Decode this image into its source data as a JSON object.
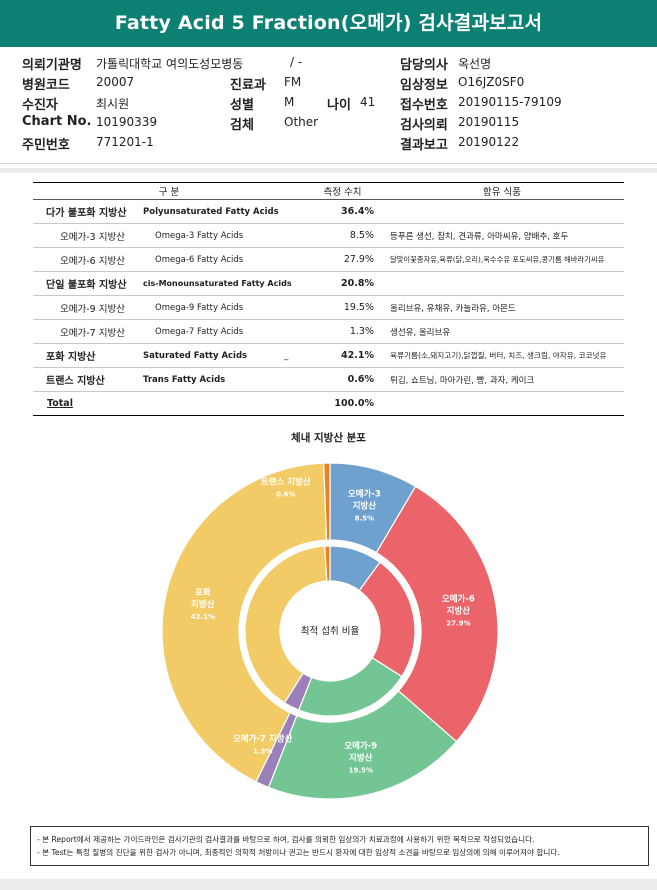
{
  "report": {
    "title": "Fatty Acid 5 Fraction(오메가) 검사결과보고서"
  },
  "patient_info": {
    "institution": {
      "label": "의뢰기관명",
      "value": "가톨릭대학교 여의도성모병동",
      "extra": "/ -"
    },
    "hospital_code": {
      "label": "병원코드",
      "value": "20007"
    },
    "recipient": {
      "label": "수진자",
      "value": "최시원"
    },
    "chart_no": {
      "label": "Chart No.",
      "value": "10190339"
    },
    "resident_no": {
      "label": "주민번호",
      "value": "771201-1"
    },
    "department": {
      "label": "진료과",
      "value": "FM"
    },
    "sex": {
      "label": "성별",
      "value": "M"
    },
    "age": {
      "label": "나이",
      "value": "41"
    },
    "specimen": {
      "label": "검체",
      "value": "Other"
    },
    "doctor": {
      "label": "담당의사",
      "value": "옥선명"
    },
    "clinical_info": {
      "label": "임상정보",
      "value": "O16JZ0SF0"
    },
    "receipt_no": {
      "label": "접수번호",
      "value": "20190115-79109"
    },
    "request_date": {
      "label": "검사의뢰",
      "value": "20190115"
    },
    "report_date": {
      "label": "결과보고",
      "value": "20190122"
    }
  },
  "table": {
    "headers": {
      "category": "구 분",
      "value": "측정 수치",
      "foods": "함유 식품"
    },
    "rows": [
      {
        "kr": "다가 불포화 지방산",
        "en": "Polyunsaturated Fatty Acids",
        "value": "36.4%",
        "foods": "",
        "level": "main"
      },
      {
        "kr": "오메가-3 지방산",
        "en": "Omega-3 Fatty Acids",
        "value": "8.5%",
        "foods": "등푸른 생선, 참치, 견과류, 아마씨유, 양배추, 호두",
        "level": "sub"
      },
      {
        "kr": "오메가-6 지방산",
        "en": "Omega-6 Fatty Acids",
        "value": "27.9%",
        "foods": "달맞이꽃종자유,육류(닭,오리),옥수수유 포도씨유,콩기름 해바라기씨유",
        "level": "sub"
      },
      {
        "kr": "단일 불포화 지방산",
        "en": "cis-Monounsaturated Fatty Acids",
        "value": "20.8%",
        "foods": "",
        "level": "main"
      },
      {
        "kr": "오메가-9 지방산",
        "en": "Omega-9 Fatty Acids",
        "value": "19.5%",
        "foods": "올리브유, 유채유, 카놀라유, 아몬드",
        "level": "sub"
      },
      {
        "kr": "오메가-7 지방산",
        "en": "Omega-7 Fatty Acids",
        "value": "1.3%",
        "foods": "생선유, 올리브유",
        "level": "sub"
      },
      {
        "kr": "포화 지방산",
        "en": "Saturated Fatty Acids",
        "value": "42.1%",
        "foods": "육류기름(소,돼지고기),닭껍질, 버터, 치즈, 생크림, 야자유, 코코넛유",
        "level": "main",
        "mark": "_"
      },
      {
        "kr": "트랜스 지방산",
        "en": "Trans Fatty Acids",
        "value": "0.6%",
        "foods": "튀김, 쇼트닝, 마아가린, 빵, 과자, 케이크",
        "level": "main"
      }
    ],
    "total": {
      "label": "Total",
      "value": "100.0%"
    }
  },
  "chart_data": {
    "type": "pie",
    "title": "체내 지방산 분포",
    "center_label": "최적 섭취 비율",
    "outer_ring": {
      "description": "measured",
      "slices": [
        {
          "label": "오메가-3 지방산",
          "value": 8.5,
          "display": "8.5%",
          "color": "#6fa1cf"
        },
        {
          "label": "오메가-6 지방산",
          "value": 27.9,
          "display": "27.9%",
          "color": "#ea6469"
        },
        {
          "label": "오메가-9 지방산",
          "value": 19.5,
          "display": "19.5%",
          "color": "#73c694"
        },
        {
          "label": "오메가-7 지방산",
          "value": 1.3,
          "display": "1.3%",
          "color": "#9b7fb8"
        },
        {
          "label": "포화 지방산",
          "value": 42.1,
          "display": "42.1%",
          "color": "#f2cb67"
        },
        {
          "label": "트랜스 지방산",
          "value": 0.6,
          "display": "0.6%",
          "color": "#ea8226"
        }
      ]
    },
    "inner_ring": {
      "description": "optimal",
      "slices": [
        {
          "label": "오메가-3 지방산",
          "value": 10,
          "color": "#6fa1cf"
        },
        {
          "label": "오메가-6 지방산",
          "value": 24,
          "color": "#ea6469"
        },
        {
          "label": "오메가-9 지방산",
          "value": 22,
          "color": "#73c694"
        },
        {
          "label": "오메가-7 지방산",
          "value": 3,
          "color": "#9b7fb8"
        },
        {
          "label": "포화 지방산",
          "value": 40,
          "color": "#f2cb67"
        },
        {
          "label": "트랜스 지방산",
          "value": 1,
          "color": "#ea8226"
        }
      ]
    }
  },
  "notes": [
    "- 본 Report에서 제공하는 가이드라인은 검사기관의 검사결과를 바탕으로 하여, 검사를 의뢰한 임상의가 치료과정에 사용하기 위한 목적으로 작성되었습니다.",
    "- 본 Test는 특정 질병의 진단을 위한 검사가 아니며, 최종적인 의학적 처방이나 권고는 반드시 환자에 대한 임상적 소견을 바탕으로 임상의에 의해 이루어져야 합니다."
  ]
}
